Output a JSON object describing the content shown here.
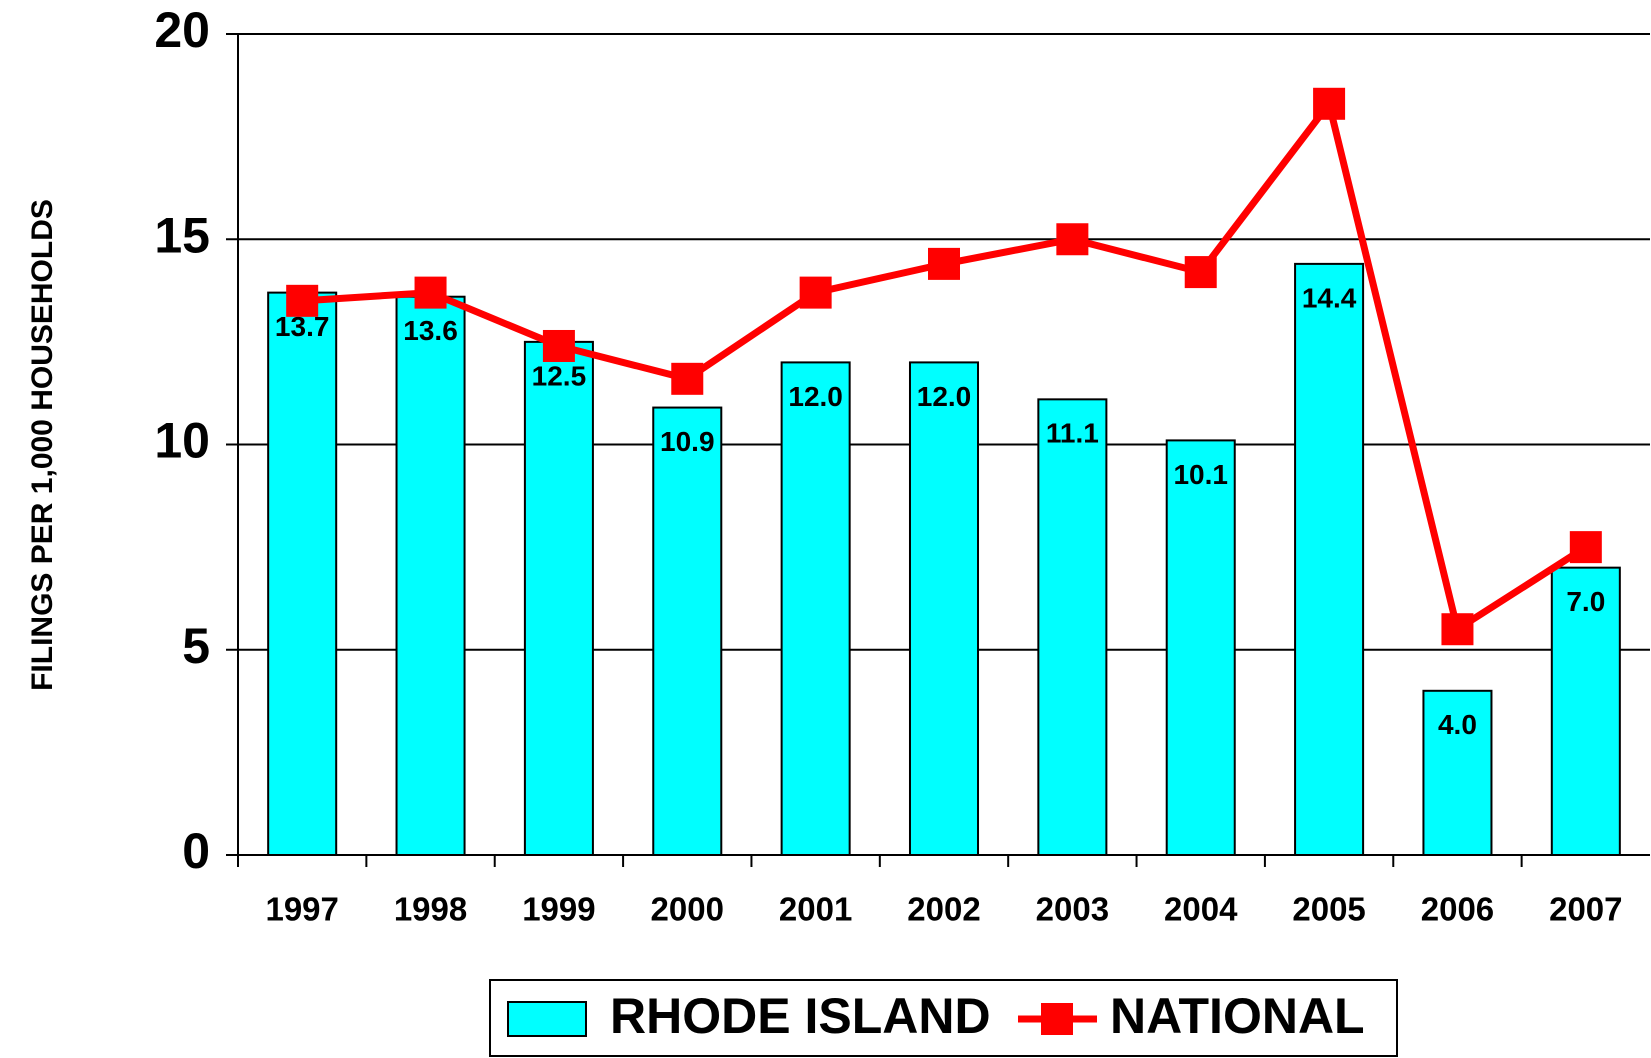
{
  "chart_data": {
    "type": "bar_line",
    "y_label": "FILINGS PER 1,000 HOUSEHOLDS",
    "categories": [
      "1997",
      "1998",
      "1999",
      "2000",
      "2001",
      "2002",
      "2003",
      "2004",
      "2005",
      "2006",
      "2007"
    ],
    "series": [
      {
        "name": "RHODE ISLAND",
        "type": "bar",
        "color": "#00ffff",
        "values": [
          13.7,
          13.6,
          12.5,
          10.9,
          12.0,
          12.0,
          11.1,
          10.1,
          14.4,
          4.0,
          7.0
        ],
        "value_labels": [
          "13.7",
          "13.6",
          "12.5",
          "10.9",
          "12.0",
          "12.0",
          "11.1",
          "10.1",
          "14.4",
          "4.0",
          "7.0"
        ]
      },
      {
        "name": "NATIONAL",
        "type": "line",
        "color": "#ff0000",
        "values": [
          13.5,
          13.7,
          12.4,
          11.6,
          13.7,
          14.4,
          15.0,
          14.2,
          18.3,
          5.5,
          7.5
        ]
      }
    ],
    "ylim": [
      0,
      20
    ],
    "yticks": [
      0,
      5,
      10,
      15,
      20
    ],
    "grid": true,
    "legend": "bottom"
  }
}
